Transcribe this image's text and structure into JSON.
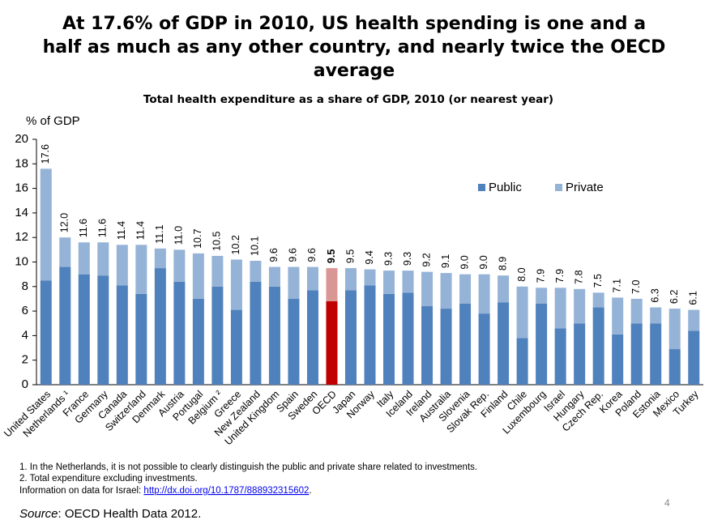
{
  "chart_data": {
    "type": "stacked_bar",
    "title_lines": [
      "At 17.6% of GDP in 2010, US health spending is one and a",
      "half as much as any other country, and nearly twice the OECD",
      "average"
    ],
    "subtitle": "Total health expenditure as a share of GDP, 2010 (or nearest year)",
    "y_label": "% of GDP",
    "categories": [
      "United States",
      "Netherlands ¹",
      "France",
      "Germany",
      "Canada",
      "Switzerland",
      "Denmark",
      "Austria",
      "Portugal",
      "Belgium ²",
      "Greece",
      "New Zealand",
      "United Kingdom",
      "Spain",
      "Sweden",
      "OECD",
      "Japan",
      "Norway",
      "Italy",
      "Iceland",
      "Ireland",
      "Australia",
      "Slovenia",
      "Slovak Rep.",
      "Finland",
      "Chile",
      "Luxembourg",
      "Israel",
      "Hungary",
      "Czech Rep.",
      "Korea",
      "Poland",
      "Estonia",
      "Mexico",
      "Turkey"
    ],
    "series": [
      {
        "name": "Public",
        "color": "#4f81bd",
        "highlight_color": "#c00000",
        "values": [
          8.5,
          9.6,
          9.0,
          8.9,
          8.1,
          7.4,
          9.5,
          8.4,
          7.0,
          8.0,
          6.1,
          8.4,
          8.0,
          7.0,
          7.7,
          6.8,
          7.7,
          8.1,
          7.4,
          7.5,
          6.4,
          6.2,
          6.6,
          5.8,
          6.7,
          3.8,
          6.6,
          4.6,
          5.0,
          6.3,
          4.1,
          5.0,
          5.0,
          2.9,
          4.4
        ]
      },
      {
        "name": "Private",
        "color": "#95b3d7",
        "highlight_color": "#d99694",
        "values": [
          9.1,
          2.4,
          2.6,
          2.7,
          3.3,
          4.0,
          1.6,
          2.6,
          3.7,
          2.5,
          4.1,
          1.7,
          1.6,
          2.6,
          1.9,
          2.7,
          1.8,
          1.3,
          1.9,
          1.8,
          2.8,
          2.9,
          2.4,
          3.2,
          2.2,
          4.2,
          1.3,
          3.3,
          2.8,
          1.2,
          3.0,
          2.0,
          1.3,
          3.3,
          1.7
        ]
      }
    ],
    "total_labels": [
      "17.6",
      "12.0",
      "11.6",
      "11.6",
      "11.4",
      "11.4",
      "11.1",
      "11.0",
      "10.7",
      "10.5",
      "10.2",
      "10.1",
      "9.6",
      "9.6",
      "9.6",
      "9.5",
      "9.5",
      "9.4",
      "9.3",
      "9.3",
      "9.2",
      "9.1",
      "9.0",
      "9.0",
      "8.9",
      "8.0",
      "7.9",
      "7.9",
      "7.8",
      "7.5",
      "7.1",
      "7.0",
      "6.3",
      "6.2",
      "6.1"
    ],
    "highlight_category": "OECD",
    "ylim": [
      0,
      20
    ],
    "yticks": [
      0,
      2,
      4,
      6,
      8,
      10,
      12,
      14,
      16,
      18,
      20
    ],
    "grid": false,
    "legend": "upper right"
  },
  "footnotes": [
    "1. In the Netherlands, it is not possible to clearly distinguish the public and private share related to investments.",
    "2. Total expenditure excluding investments."
  ],
  "israel_note": {
    "prefix": "Information on data for Israel: ",
    "link": "http://dx.doi.org/10.1787/888932315602",
    "suffix": "."
  },
  "source": {
    "label": "Source",
    "text": ": OECD Health Data 2012."
  },
  "page_number": "4"
}
